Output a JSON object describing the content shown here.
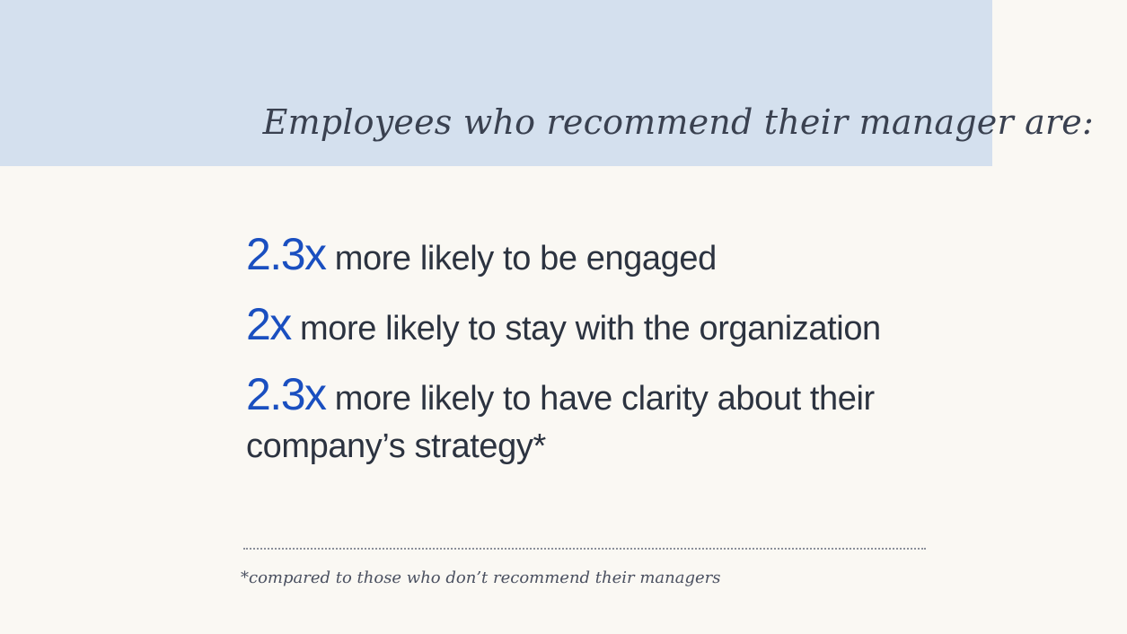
{
  "header": {
    "title": "Employees who recommend their manager are:",
    "background_color": "#d4e0ee"
  },
  "stats": [
    {
      "multiplier": "2.3x",
      "text": "more likely to be engaged"
    },
    {
      "multiplier": "2x",
      "text": "more likely to stay with the organization"
    },
    {
      "multiplier": "2.3x",
      "text": "more likely to have clarity about their company’s strategy*"
    }
  ],
  "footnote": "*compared to those who don’t recommend their managers",
  "colors": {
    "accent": "#1a4fc0",
    "text": "#2c3340",
    "page_background": "#faf8f3"
  }
}
